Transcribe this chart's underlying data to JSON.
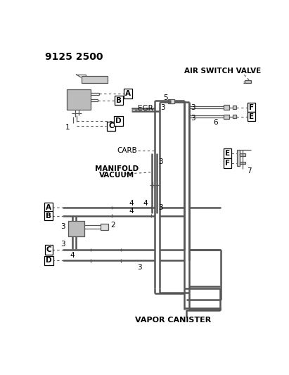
{
  "title": "9125 2500",
  "bg_color": "#ffffff",
  "lc": "#555555",
  "labels": {
    "air_switch_valve": "AIR SWITCH VALVE",
    "egr": "EGR",
    "carb": "CARB",
    "manifold_vacuum_1": "MANIFOLD",
    "manifold_vacuum_2": "VACUUM",
    "vapor_canister": "VAPOR CANISTER"
  },
  "pipe_lw": 1.8,
  "thin_lw": 0.9
}
